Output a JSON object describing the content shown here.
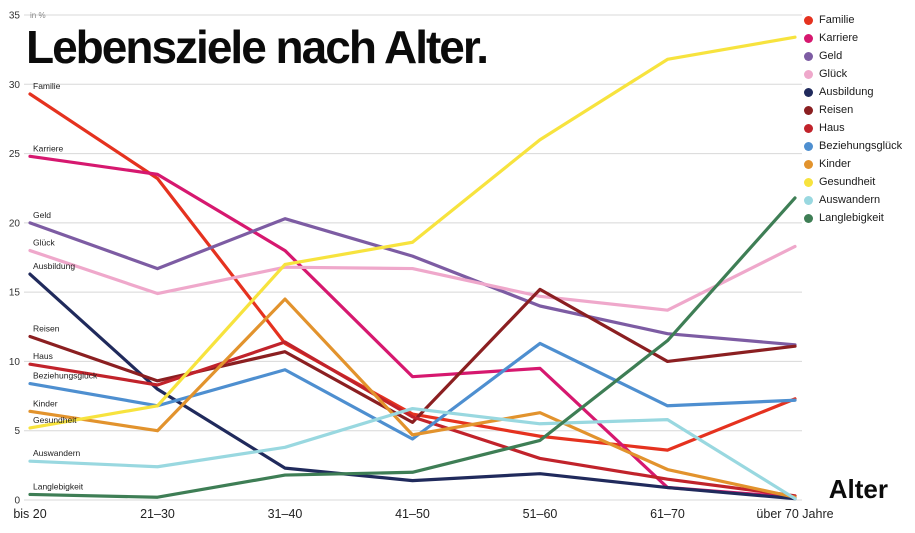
{
  "chart_data": {
    "type": "line",
    "title": "Lebensziele nach Alter.",
    "ylabel": "in %",
    "xlabel": "Alter",
    "ylim": [
      0,
      35
    ],
    "y_ticks": [
      0,
      5,
      10,
      15,
      20,
      25,
      30,
      35
    ],
    "grid": true,
    "legend_position": "top-right",
    "x_categories": [
      "bis 20",
      "21–30",
      "31–40",
      "41–50",
      "51–60",
      "61–70",
      "über 70 Jahre"
    ],
    "series": [
      {
        "name": "Familie",
        "color": "#e5321f",
        "values": [
          29.3,
          23.2,
          11.3,
          6.2,
          4.6,
          3.6,
          7.3
        ]
      },
      {
        "name": "Karriere",
        "color": "#d6186f",
        "values": [
          24.8,
          23.5,
          18.0,
          8.9,
          9.5,
          0.9,
          0.2
        ]
      },
      {
        "name": "Geld",
        "color": "#7d5ca3",
        "values": [
          20.0,
          16.7,
          20.3,
          17.6,
          14.0,
          12.0,
          11.2
        ]
      },
      {
        "name": "Glück",
        "color": "#efa8cb",
        "values": [
          18.0,
          14.9,
          16.8,
          16.7,
          14.7,
          13.7,
          18.3
        ]
      },
      {
        "name": "Ausbildung",
        "color": "#202a5c",
        "values": [
          16.3,
          8.0,
          2.3,
          1.4,
          1.9,
          0.9,
          0.1
        ]
      },
      {
        "name": "Reisen",
        "color": "#8b1f21",
        "values": [
          11.8,
          8.6,
          10.7,
          5.6,
          15.2,
          10.0,
          11.1
        ]
      },
      {
        "name": "Haus",
        "color": "#c1232b",
        "values": [
          9.8,
          8.3,
          11.4,
          6.0,
          3.0,
          1.5,
          0.3
        ]
      },
      {
        "name": "Beziehungsglück",
        "color": "#4e8fd0",
        "values": [
          8.4,
          6.8,
          9.4,
          4.4,
          11.3,
          6.8,
          7.2
        ]
      },
      {
        "name": "Kinder",
        "color": "#e2932d",
        "values": [
          6.4,
          5.0,
          14.5,
          4.7,
          6.3,
          2.2,
          0.2
        ]
      },
      {
        "name": "Gesundheit",
        "color": "#f7e33e",
        "values": [
          5.2,
          6.8,
          17.0,
          18.6,
          26.0,
          31.8,
          33.4
        ]
      },
      {
        "name": "Auswandern",
        "color": "#99d8e0",
        "values": [
          2.8,
          2.4,
          3.8,
          6.6,
          5.5,
          5.8,
          0.1
        ]
      },
      {
        "name": "Langlebigkeit",
        "color": "#3e7e55",
        "values": [
          0.4,
          0.2,
          1.8,
          2.0,
          4.3,
          11.5,
          21.8
        ]
      }
    ]
  }
}
